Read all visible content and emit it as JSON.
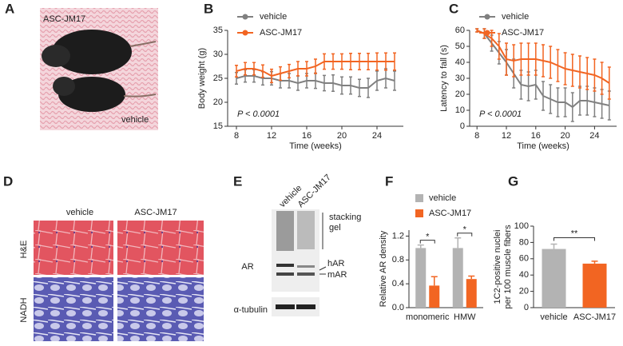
{
  "panel_labels": [
    "A",
    "B",
    "C",
    "D",
    "E",
    "F",
    "G"
  ],
  "photo": {
    "labels": [
      "ASC-JM17",
      "vehicle"
    ]
  },
  "histology": {
    "columns": [
      "vehicle",
      "ASC-JM17"
    ],
    "rows": [
      "H&E",
      "NADH"
    ]
  },
  "western": {
    "lanes": [
      "vehicle",
      "ASC-JM17"
    ],
    "protein": "AR",
    "loading": "α-tubulin",
    "stacking": [
      "stacking",
      "gel"
    ],
    "bands": [
      "hAR",
      "mAR"
    ]
  },
  "chart_data": [
    {
      "type": "line",
      "xlabel": "Time (weeks)",
      "ylabel": "Body weight (g)",
      "annotation": "P < 0.0001",
      "x": [
        8,
        9,
        10,
        11,
        12,
        13,
        14,
        15,
        16,
        17,
        18,
        19,
        20,
        21,
        22,
        23,
        24,
        25,
        26
      ],
      "xlim": [
        7,
        27
      ],
      "xticks": [
        8,
        12,
        16,
        20,
        24
      ],
      "ylim": [
        15,
        35
      ],
      "yticks": [
        15,
        20,
        25,
        30,
        35
      ],
      "series": [
        {
          "name": "vehicle",
          "color": "#808080",
          "values": [
            25,
            25.5,
            25.5,
            25,
            25,
            24.5,
            24.5,
            24,
            24.5,
            24.5,
            24,
            24,
            23.5,
            23.5,
            23,
            23,
            24.5,
            25,
            24.5
          ],
          "errors": [
            1.2,
            1.3,
            1.3,
            1.4,
            1.4,
            1.5,
            1.5,
            1.5,
            1.5,
            1.6,
            1.6,
            1.7,
            1.8,
            1.8,
            1.8,
            2,
            2,
            2,
            2
          ]
        },
        {
          "name": "ASC-JM17",
          "color": "#f26522",
          "values": [
            26.5,
            27,
            27,
            26.5,
            25.5,
            26,
            26.5,
            27,
            27,
            27.5,
            28.5,
            28.5,
            28.5,
            28.5,
            28.5,
            28.5,
            28.5,
            28.5,
            28.5
          ],
          "errors": [
            1.2,
            1.3,
            1.3,
            1.3,
            1.4,
            1.4,
            1.4,
            1.5,
            1.5,
            1.5,
            1.6,
            1.6,
            1.6,
            1.7,
            1.7,
            1.7,
            1.8,
            1.8,
            1.8
          ]
        }
      ]
    },
    {
      "type": "line",
      "xlabel": "Time (weeks)",
      "ylabel": "Latency to fall (s)",
      "annotation": "P < 0.0001",
      "x": [
        8,
        9,
        10,
        11,
        12,
        13,
        14,
        15,
        16,
        17,
        18,
        19,
        20,
        21,
        22,
        23,
        24,
        25,
        26
      ],
      "xlim": [
        7,
        27
      ],
      "xticks": [
        8,
        12,
        16,
        20,
        24
      ],
      "ylim": [
        0,
        60
      ],
      "yticks": [
        0,
        10,
        20,
        30,
        40,
        50,
        60
      ],
      "series": [
        {
          "name": "vehicle",
          "color": "#808080",
          "values": [
            60,
            58,
            52,
            46,
            40,
            33,
            26,
            25,
            26,
            19,
            17,
            15,
            15,
            12,
            16,
            16,
            15,
            14,
            13
          ],
          "errors": [
            1,
            3,
            5,
            7,
            8,
            9,
            9,
            9,
            9,
            9,
            9,
            9,
            9,
            9,
            9,
            9,
            9,
            9,
            9
          ]
        },
        {
          "name": "ASC-JM17",
          "color": "#f26522",
          "values": [
            60,
            58,
            55,
            50,
            42,
            41,
            42,
            42,
            42,
            41,
            40,
            38,
            36,
            35,
            34,
            33,
            32,
            30,
            27
          ],
          "errors": [
            1,
            3,
            5,
            8,
            10,
            10,
            10,
            10,
            10,
            10,
            10,
            10,
            10,
            10,
            10,
            10,
            10,
            10,
            10
          ]
        }
      ]
    },
    {
      "type": "bar",
      "ylabel": "Relative AR density",
      "categories": [
        "monomeric",
        "HMW"
      ],
      "ylim": [
        0,
        1.3
      ],
      "yticks": [
        {
          "value": 0,
          "label": "0.0"
        },
        0.4,
        0.8,
        1.2
      ],
      "significance": [
        "*",
        "*"
      ],
      "series": [
        {
          "name": "vehicle",
          "color": "#b3b3b3",
          "values": [
            1.0,
            1.0
          ],
          "errors": [
            0.05,
            0.17
          ]
        },
        {
          "name": "ASC-JM17",
          "color": "#f26522",
          "values": [
            0.37,
            0.48
          ],
          "errors": [
            0.15,
            0.05
          ]
        }
      ]
    },
    {
      "type": "bar",
      "ylabel": [
        "1C2-positive nuclei",
        "per 100 muscle fibers"
      ],
      "categories": [
        "vehicle",
        "ASC-JM17"
      ],
      "values": [
        72,
        54
      ],
      "errors": [
        6,
        3
      ],
      "colors": [
        "#b3b3b3",
        "#f26522"
      ],
      "ylim": [
        0,
        100
      ],
      "yticks": [
        0,
        20,
        40,
        60,
        80,
        100
      ],
      "significance": "**"
    }
  ]
}
